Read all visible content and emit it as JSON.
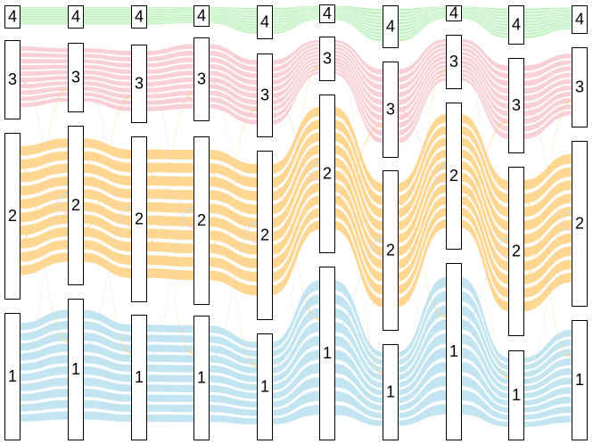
{
  "chart_data": {
    "type": "alluvial",
    "title": "",
    "axes": [
      {
        "nodes": [
          {
            "label": "4",
            "cat": "4"
          },
          {
            "label": "3",
            "cat": "3"
          },
          {
            "label": "2",
            "cat": "2"
          },
          {
            "label": "1",
            "cat": "1"
          }
        ]
      },
      {
        "nodes": [
          {
            "label": "4",
            "cat": "4"
          },
          {
            "label": "3",
            "cat": "3"
          },
          {
            "label": "2",
            "cat": "2"
          },
          {
            "label": "1",
            "cat": "1"
          }
        ]
      },
      {
        "nodes": [
          {
            "label": "4",
            "cat": "4"
          },
          {
            "label": "3",
            "cat": "3"
          },
          {
            "label": "2",
            "cat": "2"
          },
          {
            "label": "1",
            "cat": "1"
          }
        ]
      },
      {
        "nodes": [
          {
            "label": "4",
            "cat": "4"
          },
          {
            "label": "3",
            "cat": "3"
          },
          {
            "label": "2",
            "cat": "2"
          },
          {
            "label": "1",
            "cat": "1"
          }
        ]
      },
      {
        "nodes": [
          {
            "label": "4",
            "cat": "4"
          },
          {
            "label": "3",
            "cat": "3"
          },
          {
            "label": "2",
            "cat": "2"
          },
          {
            "label": "1",
            "cat": "1"
          }
        ]
      },
      {
        "nodes": [
          {
            "label": "4",
            "cat": "4"
          },
          {
            "label": "3",
            "cat": "3"
          },
          {
            "label": "2",
            "cat": "2"
          },
          {
            "label": "1",
            "cat": "1"
          }
        ]
      },
      {
        "nodes": [
          {
            "label": "4",
            "cat": "4"
          },
          {
            "label": "3",
            "cat": "3"
          },
          {
            "label": "2",
            "cat": "2"
          },
          {
            "label": "1",
            "cat": "1"
          }
        ]
      },
      {
        "nodes": [
          {
            "label": "4",
            "cat": "4"
          },
          {
            "label": "3",
            "cat": "3"
          },
          {
            "label": "2",
            "cat": "2"
          },
          {
            "label": "1",
            "cat": "1"
          }
        ]
      },
      {
        "nodes": [
          {
            "label": "4",
            "cat": "4"
          },
          {
            "label": "3",
            "cat": "3"
          },
          {
            "label": "2",
            "cat": "2"
          },
          {
            "label": "1",
            "cat": "1"
          }
        ]
      },
      {
        "nodes": [
          {
            "label": "4",
            "cat": "4"
          },
          {
            "label": "3",
            "cat": "3"
          },
          {
            "label": "2",
            "cat": "2"
          },
          {
            "label": "1",
            "cat": "1"
          }
        ]
      }
    ],
    "category_colors": {
      "4": "#b8f0b8",
      "3": "#f8c8d0",
      "2": "#ffd080",
      "1": "#b8e0f0"
    }
  }
}
